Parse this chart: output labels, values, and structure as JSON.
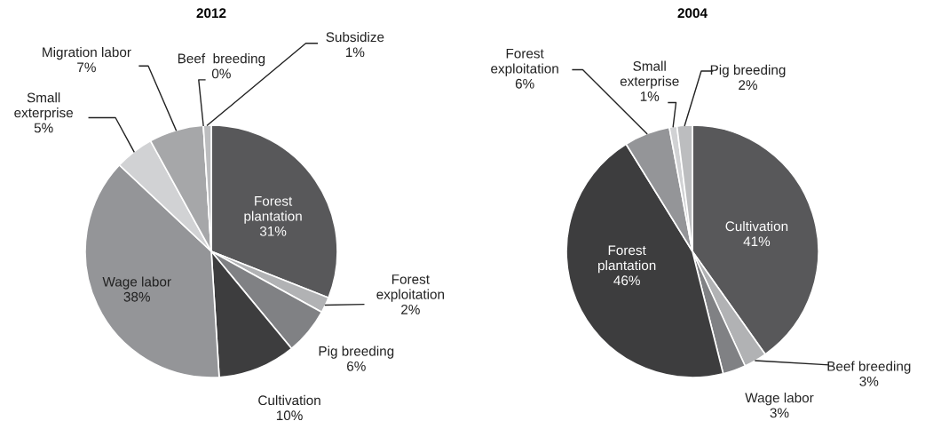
{
  "chart_data": [
    {
      "type": "pie",
      "title": "2012",
      "categories": [
        "Forest\nplantation",
        "Forest\nexploitation",
        "Pig breeding",
        "Cultivation",
        "Wage labor",
        "Small\nexterprise",
        "Migration labor",
        "Beef  breeding",
        "Subsidize"
      ],
      "values": [
        31,
        2,
        6,
        10,
        38,
        5,
        7,
        0,
        1
      ],
      "value_labels": [
        "31%",
        "2%",
        "6%",
        "10%",
        "38%",
        "5%",
        "7%",
        "0%",
        "1%"
      ],
      "colors": [
        "#58585a",
        "#b1b2b4",
        "#808184",
        "#3d3d3e",
        "#949598",
        "#d1d2d4",
        "#a6a7a9",
        "#a6a7a9",
        "#bcbdbf"
      ]
    },
    {
      "type": "pie",
      "title": "2004",
      "categories": [
        "Cultivation",
        "Beef breeding",
        "Wage labor",
        "Forest\nplantation",
        "Forest\nexploitation",
        "Small\nexterprise",
        "Pig breeding"
      ],
      "values": [
        41,
        3,
        3,
        46,
        6,
        1,
        2
      ],
      "value_labels": [
        "41%",
        "3%",
        "3%",
        "46%",
        "6%",
        "1%",
        "2%"
      ],
      "colors": [
        "#58585a",
        "#b1b2b4",
        "#808184",
        "#3d3d3e",
        "#949598",
        "#d1d2d4",
        "#bcbdbf"
      ]
    }
  ]
}
